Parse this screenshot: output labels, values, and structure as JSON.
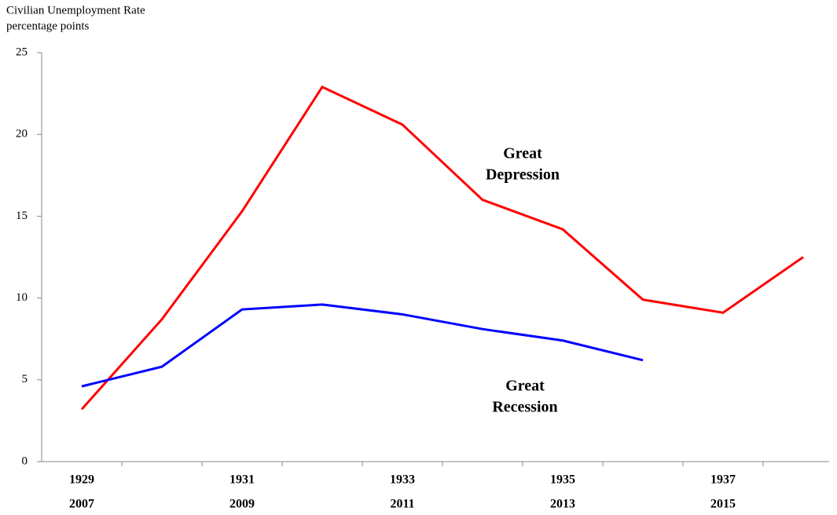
{
  "chart_data": {
    "type": "line",
    "title": "Civilian Unemployment Rate",
    "y_label": "percentage points",
    "categories": [
      "1929",
      null,
      "1931",
      null,
      "1933",
      null,
      "1935",
      null,
      "1937",
      null
    ],
    "secondary_categories": [
      "2007",
      null,
      "2009",
      null,
      "2011",
      null,
      "2013",
      null,
      "2015",
      null
    ],
    "series": [
      {
        "color": "#ff0000",
        "values": [
          3.2,
          8.7,
          15.3,
          22.9,
          20.6,
          16.0,
          14.2,
          9.9,
          9.1,
          12.5
        ]
      },
      {
        "color": "#0000ff",
        "values": [
          4.6,
          5.8,
          9.3,
          9.6,
          9.0,
          8.1,
          7.4,
          6.2,
          null,
          null
        ]
      }
    ],
    "annotations": [
      {
        "lines": [
          "Great",
          "Depression"
        ],
        "color": "#ff0000"
      },
      {
        "lines": [
          "Great",
          "Recession"
        ],
        "color": "#0000ff"
      }
    ],
    "ylim": [
      0,
      25
    ],
    "yticks": [
      0,
      5,
      10,
      15,
      20,
      25
    ],
    "grid": false
  }
}
